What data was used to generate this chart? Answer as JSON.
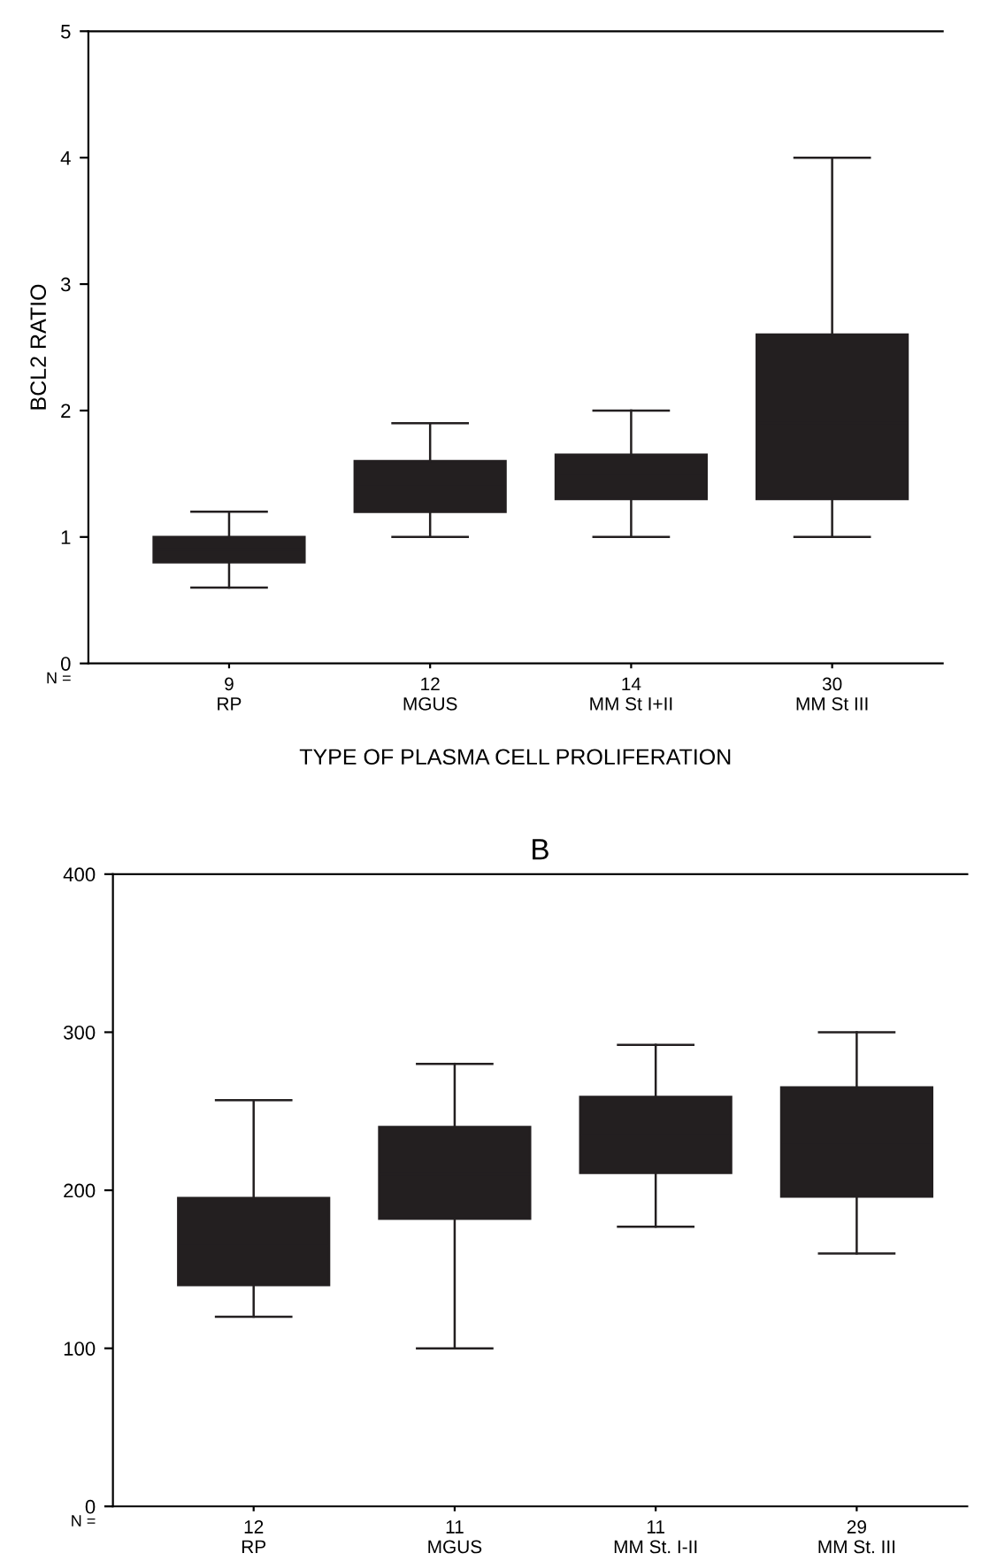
{
  "chart_data": [
    {
      "type": "box",
      "ylabel": "BCL2 RATIO",
      "xlabel": "TYPE OF PLASMA CELL PROLIFERATION",
      "categories": [
        "9\nRP",
        "12\nMGUS",
        "14\nMM St I+II",
        "30\nMM St III"
      ],
      "ylim": [
        0,
        5
      ],
      "yticks": [
        0,
        1,
        2,
        3,
        4,
        5
      ],
      "grid": false,
      "color": "#231f20",
      "annotations": [
        "N ="
      ],
      "boxes": [
        {
          "low": 0.6,
          "q1": 0.8,
          "median": 0.9,
          "q3": 1.0,
          "high": 1.2
        },
        {
          "low": 1.0,
          "q1": 1.2,
          "median": 1.4,
          "q3": 1.6,
          "high": 1.9
        },
        {
          "low": 1.0,
          "q1": 1.3,
          "median": 1.5,
          "q3": 1.65,
          "high": 2.0
        },
        {
          "low": 1.0,
          "q1": 1.3,
          "median": 1.9,
          "q3": 2.6,
          "high": 4.0
        }
      ]
    },
    {
      "type": "box",
      "title": "B",
      "categories": [
        "12\nRP",
        "11\nMGUS",
        "11\nMM St. I-II",
        "29\nMM St. III"
      ],
      "ylim": [
        0,
        400
      ],
      "yticks": [
        0,
        100,
        200,
        300,
        400
      ],
      "grid": false,
      "color": "#231f20",
      "annotations": [
        "N ="
      ],
      "boxes": [
        {
          "low": 120,
          "q1": 140,
          "median": 165,
          "q3": 195,
          "high": 257
        },
        {
          "low": 100,
          "q1": 182,
          "median": 210,
          "q3": 240,
          "high": 280
        },
        {
          "low": 177,
          "q1": 211,
          "median": 235,
          "q3": 259,
          "high": 292
        },
        {
          "low": 160,
          "q1": 196,
          "median": 230,
          "q3": 265,
          "high": 300
        }
      ]
    }
  ]
}
